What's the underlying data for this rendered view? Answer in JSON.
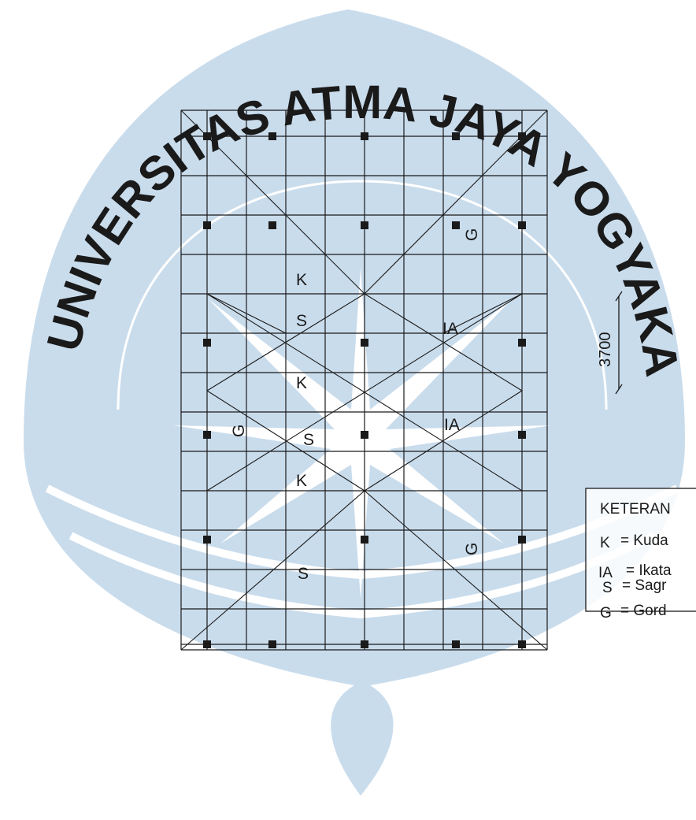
{
  "watermark": {
    "text": "UNIVERSITAS ATMA JAYA YOGYAKARTA",
    "color": "#c9dcec"
  },
  "plan": {
    "line_color": "#1a1a1a",
    "column_color": "#1a1a1a",
    "labels": [
      {
        "id": "k1",
        "text": "K"
      },
      {
        "id": "s1",
        "text": "S"
      },
      {
        "id": "ia1",
        "text": "IA"
      },
      {
        "id": "g1",
        "text": "G"
      },
      {
        "id": "k2",
        "text": "K"
      },
      {
        "id": "g2",
        "text": "G"
      },
      {
        "id": "s2",
        "text": "S"
      },
      {
        "id": "ia2",
        "text": "IA"
      },
      {
        "id": "k3",
        "text": "K"
      },
      {
        "id": "g3",
        "text": "G"
      },
      {
        "id": "s3",
        "text": "S"
      }
    ]
  },
  "dimension": {
    "value": "3700"
  },
  "legend": {
    "title": "KETERAN",
    "items": [
      {
        "symbol": "K",
        "text": "= Kuda"
      },
      {
        "symbol": "IA",
        "text": "= Ikata"
      },
      {
        "symbol": "S",
        "text": "= Sagr"
      },
      {
        "symbol": "G",
        "text": "= Gord"
      }
    ]
  }
}
